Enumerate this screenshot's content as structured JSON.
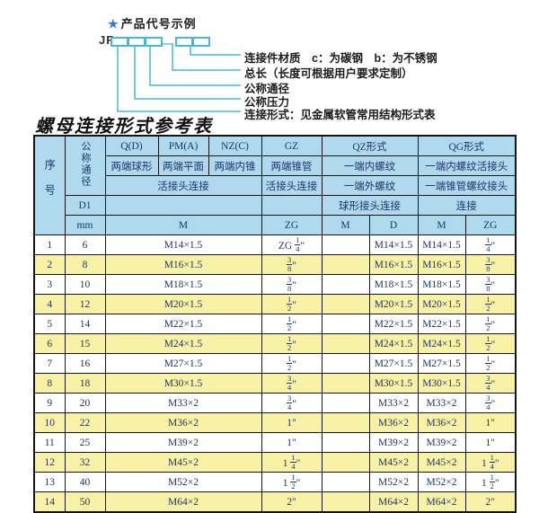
{
  "colors": {
    "header_blue": "#afdaee",
    "row_yellow": "#f8f2a6",
    "line_cyan": "#46b9d6",
    "text_navy": "#1e3468",
    "star_blue": "#3c7cc0"
  },
  "diagram": {
    "star": "★",
    "title": "产品代号示例",
    "prefix": "JR",
    "dash": "—",
    "labels": [
      "连接件材质　c：为碳钢　b：为不锈钢",
      "总长（长度可根据用户要求定制）",
      "公称通径",
      "公称压力",
      "连接形式：见金属软管常用结构形式表"
    ]
  },
  "table": {
    "title": "螺母连接形式参考表",
    "header": {
      "seq": "序号",
      "dn": "公称通径",
      "d1": "D1",
      "mm": "mm",
      "col_q": "Q(D)",
      "col_pm": "PM(A)",
      "col_nz": "NZ(C)",
      "col_gz": "GZ",
      "col_qz": "QZ形式",
      "col_qg": "QG形式",
      "q_desc": "两端球形",
      "pm_desc": "两端平面",
      "nz_desc": "两端内锥",
      "gz_desc": "两端锥管",
      "union_conn_left": "活接头连接",
      "union_conn_gz": "活接头连接",
      "qz_desc1": "一端内螺纹",
      "qz_desc2": "一端外螺纹",
      "qz_conn": "球形接头连接",
      "qg_desc1": "一端内螺纹活接头",
      "qg_desc2": "一端锥管螺纹接头",
      "qg_conn": "连接",
      "unit_m": "M",
      "unit_zg": "ZG",
      "qz_sub_m": "M",
      "qz_sub_d": "D",
      "qg_sub_m": "M",
      "qg_sub_zg": "ZG"
    },
    "rows": [
      {
        "no": "1",
        "dn": "6",
        "m": "M14×1.5",
        "gz": "ZG 1/4\"",
        "qzm": "",
        "qzd": "M14×1.5",
        "qgm": "M14×1.5",
        "qgzg": "1/4\""
      },
      {
        "no": "2",
        "dn": "8",
        "m": "M16×1.5",
        "gz": "3/8\"",
        "qzm": "",
        "qzd": "M16×1.5",
        "qgm": "M16×1.5",
        "qgzg": "3/8\""
      },
      {
        "no": "3",
        "dn": "10",
        "m": "M18×1.5",
        "gz": "3/8\"",
        "qzm": "",
        "qzd": "M18×1.5",
        "qgm": "M18×1.5",
        "qgzg": "3/8\""
      },
      {
        "no": "4",
        "dn": "12",
        "m": "M20×1.5",
        "gz": "1/2\"",
        "qzm": "",
        "qzd": "M20×1.5",
        "qgm": "M20×1.5",
        "qgzg": "1/2\""
      },
      {
        "no": "5",
        "dn": "14",
        "m": "M22×1.5",
        "gz": "1/2\"",
        "qzm": "",
        "qzd": "M22×1.5",
        "qgm": "M22×1.5",
        "qgzg": "1/2\""
      },
      {
        "no": "6",
        "dn": "15",
        "m": "M24×1.5",
        "gz": "1/2\"",
        "qzm": "",
        "qzd": "M24×1.5",
        "qgm": "M24×1.5",
        "qgzg": "1/2\""
      },
      {
        "no": "7",
        "dn": "16",
        "m": "M27×1.5",
        "gz": "1/2\"",
        "qzm": "",
        "qzd": "M27×1.5",
        "qgm": "M27×1.5",
        "qgzg": "1/2\""
      },
      {
        "no": "8",
        "dn": "18",
        "m": "M30×1.5",
        "gz": "3/4\"",
        "qzm": "",
        "qzd": "M30×1.5",
        "qgm": "M30×1.5",
        "qgzg": "3/4\""
      },
      {
        "no": "9",
        "dn": "20",
        "m": "M33×2",
        "gz": "3/4\"",
        "qzm": "",
        "qzd": "M33×2",
        "qgm": "M33×2",
        "qgzg": "3/4\""
      },
      {
        "no": "10",
        "dn": "22",
        "m": "M36×2",
        "gz": "1\"",
        "qzm": "",
        "qzd": "M36×2",
        "qgm": "M36×2",
        "qgzg": "1\""
      },
      {
        "no": "11",
        "dn": "25",
        "m": "M39×2",
        "gz": "1\"",
        "qzm": "",
        "qzd": "M39×2",
        "qgm": "M39×2",
        "qgzg": "1\""
      },
      {
        "no": "12",
        "dn": "32",
        "m": "M45×2",
        "gz": "1 1/4\"",
        "qzm": "",
        "qzd": "M45×2",
        "qgm": "M45×2",
        "qgzg": "1 1/4\""
      },
      {
        "no": "13",
        "dn": "40",
        "m": "M52×2",
        "gz": "1 1/2\"",
        "qzm": "",
        "qzd": "M52×2",
        "qgm": "M52×2",
        "qgzg": "1 1/2\""
      },
      {
        "no": "14",
        "dn": "50",
        "m": "M64×2",
        "gz": "2\"",
        "qzm": "",
        "qzd": "M64×2",
        "qgm": "M64×2",
        "qgzg": "2\""
      }
    ]
  }
}
